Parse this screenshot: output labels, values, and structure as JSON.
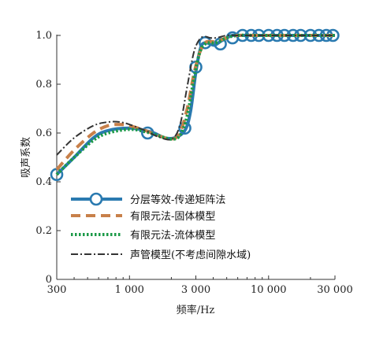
{
  "chart_data": {
    "type": "line",
    "xlabel": "频率/Hz",
    "ylabel": "吸声系数",
    "xscale": "log",
    "xlim": [
      300,
      30000
    ],
    "ylim": [
      0,
      1.0
    ],
    "x_ticks": [
      300,
      1000,
      3000,
      10000,
      30000
    ],
    "x_tick_labels": [
      "300",
      "1 000",
      "3 000",
      "10 000",
      "30 000"
    ],
    "y_ticks": [
      0,
      0.2,
      0.4,
      0.6,
      0.8,
      1.0
    ],
    "y_tick_labels": [
      "0",
      "0.2",
      "0.4",
      "0.6",
      "0.8",
      "1.0"
    ],
    "legend_position": "lower-right",
    "series": [
      {
        "name": "分层等效-传递矩阵法",
        "color": "#2a7ab0",
        "style": "solid-with-circle-markers",
        "x": [
          300,
          400,
          550,
          700,
          1000,
          1300,
          1500,
          1800,
          2100,
          2500,
          2750,
          3000,
          3250,
          3500,
          3800,
          4100,
          4500,
          5000,
          5500,
          6500,
          8000,
          10000,
          15000,
          20000,
          30000
        ],
        "y": [
          0.43,
          0.5,
          0.58,
          0.61,
          0.62,
          0.61,
          0.6,
          0.58,
          0.58,
          0.61,
          0.69,
          0.85,
          0.95,
          0.97,
          0.965,
          0.96,
          0.975,
          0.99,
          1.0,
          1.0,
          1.0,
          1.0,
          1.0,
          1.0,
          1.0
        ],
        "markers_x": [
          300,
          1350,
          2500,
          3000,
          3500,
          4500,
          5500,
          6500,
          7500,
          8500,
          10000,
          11500,
          13000,
          15000,
          17000,
          20000,
          23000,
          26000,
          29000
        ],
        "markers_y": [
          0.43,
          0.6,
          0.62,
          0.87,
          0.97,
          0.965,
          0.99,
          1.0,
          1.0,
          1.0,
          1.0,
          1.0,
          1.0,
          1.0,
          1.0,
          1.0,
          1.0,
          1.0,
          1.0
        ]
      },
      {
        "name": "有限元法-固体模型",
        "color": "#c8804a",
        "style": "dashed",
        "x": [
          300,
          400,
          550,
          700,
          850,
          1000,
          1300,
          1600,
          2000,
          2300,
          2600,
          2900,
          3200,
          3500,
          3800,
          4200,
          5000,
          6000,
          8000,
          10000,
          15000,
          20000,
          30000
        ],
        "y": [
          0.45,
          0.53,
          0.6,
          0.63,
          0.635,
          0.63,
          0.61,
          0.59,
          0.575,
          0.6,
          0.7,
          0.84,
          0.93,
          0.97,
          0.975,
          0.975,
          0.99,
          1.0,
          1.0,
          1.0,
          1.0,
          1.0,
          1.0
        ]
      },
      {
        "name": "有限元法-流体模型",
        "color": "#1c9a48",
        "style": "dotted",
        "x": [
          300,
          400,
          550,
          700,
          1000,
          1300,
          1600,
          2000,
          2300,
          2600,
          2900,
          3200,
          3500,
          3800,
          4200,
          5000,
          6000,
          8000,
          10000,
          15000,
          20000,
          30000
        ],
        "y": [
          0.43,
          0.5,
          0.57,
          0.6,
          0.615,
          0.605,
          0.59,
          0.575,
          0.59,
          0.67,
          0.82,
          0.93,
          0.965,
          0.97,
          0.97,
          0.99,
          1.0,
          1.0,
          1.0,
          1.0,
          1.0,
          1.0
        ]
      },
      {
        "name": "声管模型(不考虑间隙水域)",
        "color": "#333333",
        "style": "dash-dot",
        "x": [
          300,
          400,
          550,
          700,
          850,
          1000,
          1300,
          1600,
          2000,
          2300,
          2600,
          2900,
          3200,
          3500,
          3800,
          4200,
          5000,
          6000,
          8000,
          10000,
          15000,
          20000,
          30000
        ],
        "y": [
          0.51,
          0.58,
          0.63,
          0.645,
          0.645,
          0.635,
          0.61,
          0.585,
          0.575,
          0.63,
          0.79,
          0.93,
          0.985,
          0.995,
          0.99,
          0.99,
          1.0,
          1.0,
          1.0,
          1.0,
          1.0,
          1.0,
          1.0
        ]
      }
    ]
  }
}
